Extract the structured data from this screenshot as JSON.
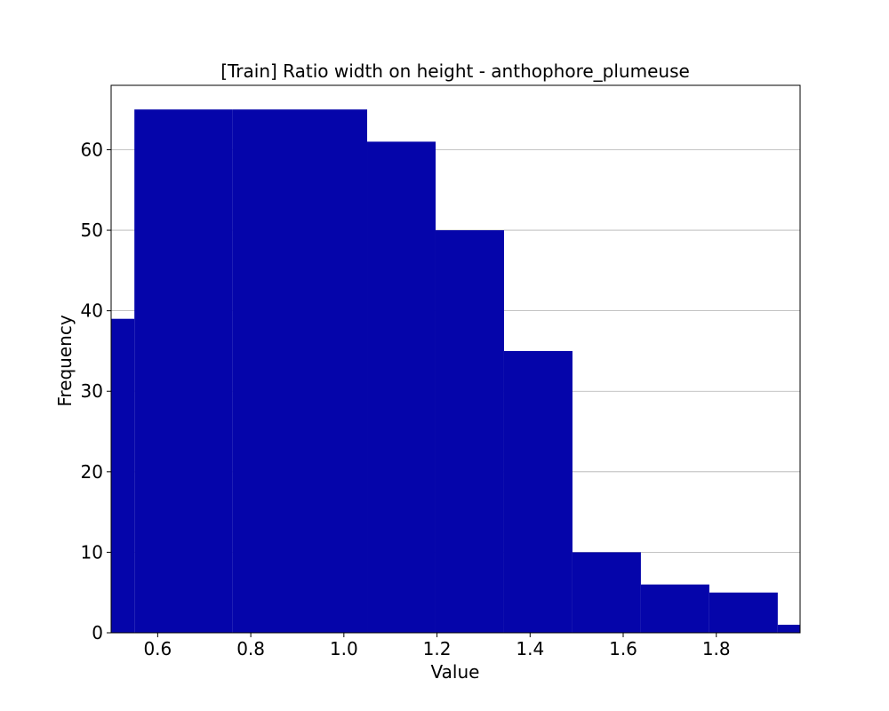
{
  "chart_data": {
    "type": "bar",
    "title": "[Train] Ratio width on height - anthophore_plumeuse",
    "xlabel": "Value",
    "ylabel": "Frequency",
    "xlim": [
      0.5,
      1.98
    ],
    "ylim": [
      0,
      68
    ],
    "bar_color": "#0505aa",
    "grid": "y-major",
    "bins": [
      {
        "x0": 0.4,
        "x1": 0.55,
        "count": 39
      },
      {
        "x0": 0.55,
        "x1": 0.76,
        "count": 65
      },
      {
        "x0": 0.76,
        "x1": 1.05,
        "count": 65
      },
      {
        "x0": 1.05,
        "x1": 1.197,
        "count": 61
      },
      {
        "x0": 1.197,
        "x1": 1.344,
        "count": 50
      },
      {
        "x0": 1.344,
        "x1": 1.491,
        "count": 35
      },
      {
        "x0": 1.491,
        "x1": 1.638,
        "count": 10
      },
      {
        "x0": 1.638,
        "x1": 1.785,
        "count": 6
      },
      {
        "x0": 1.785,
        "x1": 1.932,
        "count": 5
      },
      {
        "x0": 1.932,
        "x1": 2.079,
        "count": 1
      }
    ],
    "x_ticks": [
      {
        "value": 0.6,
        "label": "0.6"
      },
      {
        "value": 0.8,
        "label": "0.8"
      },
      {
        "value": 1.0,
        "label": "1.0"
      },
      {
        "value": 1.2,
        "label": "1.2"
      },
      {
        "value": 1.4,
        "label": "1.4"
      },
      {
        "value": 1.6,
        "label": "1.6"
      },
      {
        "value": 1.8,
        "label": "1.8"
      }
    ],
    "y_ticks": [
      {
        "value": 0,
        "label": "0"
      },
      {
        "value": 10,
        "label": "10"
      },
      {
        "value": 20,
        "label": "20"
      },
      {
        "value": 30,
        "label": "30"
      },
      {
        "value": 40,
        "label": "40"
      },
      {
        "value": 50,
        "label": "50"
      },
      {
        "value": 60,
        "label": "60"
      }
    ]
  }
}
